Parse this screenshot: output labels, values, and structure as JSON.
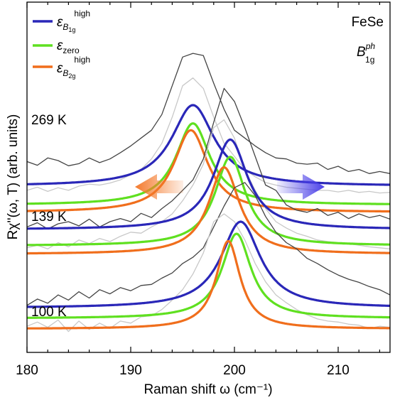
{
  "chart_data": {
    "type": "line",
    "xlabel": "Raman shift ω (cm⁻¹)",
    "ylabel": "Rχ''(ω, T) (arb. units)",
    "xlim": [
      180,
      215
    ],
    "xticks": [
      180,
      190,
      200,
      210
    ],
    "material": "FeSe",
    "mode": {
      "base": "B",
      "sup": "ph",
      "sub": "1g"
    },
    "legend": {
      "placement": "top-left",
      "entries": [
        {
          "symbol": "ε",
          "sub": "B",
          "subsub": "1g",
          "sup": "high",
          "color": "#2a27b8"
        },
        {
          "symbol": "ε",
          "sub": "zero",
          "subsub": "",
          "sup": "",
          "color": "#5fe020"
        },
        {
          "symbol": "ε",
          "sub": "B",
          "subsub": "2g",
          "sup": "high",
          "color": "#f06e1c"
        }
      ]
    },
    "arrows": [
      {
        "direction": "left",
        "color": "#f47a2c"
      },
      {
        "direction": "right",
        "color": "#4a3fe8"
      }
    ],
    "temperatures": [
      {
        "label": "269 K",
        "fits": [
          {
            "color": "#2a27b8",
            "center": 196.0,
            "gamma": 2.5,
            "amp": 1.55,
            "offset": 0.98
          },
          {
            "color": "#5fe020",
            "center": 196.0,
            "gamma": 2.0,
            "amp": 1.56,
            "offset": 0.62
          },
          {
            "color": "#f06e1c",
            "center": 195.8,
            "gamma": 2.0,
            "amp": 1.57,
            "offset": 0.48
          }
        ],
        "data": [
          {
            "color": "#444444",
            "x": [
              180,
              181,
              182,
              183,
              184,
              185,
              186,
              187,
              188,
              189,
              190,
              191,
              192,
              193,
              194,
              195,
              196,
              197,
              198,
              199,
              200,
              201,
              202,
              203,
              204,
              205,
              206,
              207,
              208,
              209,
              210,
              211,
              212,
              213,
              214,
              215
            ],
            "y": [
              1.45,
              1.38,
              1.52,
              1.47,
              1.37,
              1.41,
              1.52,
              1.43,
              1.5,
              1.62,
              1.75,
              1.9,
              2.05,
              2.35,
              2.9,
              3.45,
              3.52,
              3.48,
              2.95,
              2.45,
              2.05,
              1.9,
              1.75,
              1.62,
              1.52,
              1.5,
              1.42,
              1.4,
              1.42,
              1.3,
              1.36,
              1.26,
              1.3,
              1.22,
              1.26,
              1.22
            ]
          },
          {
            "color": "#c8c8c8",
            "x": [
              180,
              181,
              182,
              183,
              184,
              185,
              186,
              187,
              188,
              189,
              190,
              191,
              192,
              193,
              194,
              195,
              196,
              197,
              198,
              199,
              200,
              201,
              202,
              203,
              204,
              205,
              206,
              207,
              208,
              209,
              210,
              211,
              212,
              213,
              214,
              215
            ],
            "y": [
              0.9,
              0.96,
              0.88,
              0.95,
              0.9,
              0.98,
              1.02,
              1.0,
              1.04,
              1.1,
              1.2,
              1.3,
              1.5,
              1.8,
              2.3,
              2.9,
              3.05,
              2.85,
              2.3,
              1.8,
              1.55,
              1.3,
              1.16,
              1.05,
              1.0,
              0.96,
              0.94,
              0.92,
              0.9,
              0.9,
              0.87,
              0.9,
              0.86,
              0.88,
              0.85,
              0.86
            ]
          }
        ]
      },
      {
        "label": "139 K",
        "fits": [
          {
            "color": "#2a27b8",
            "center": 199.6,
            "gamma": 2.0,
            "amp": 1.72,
            "offset": 0.15
          },
          {
            "color": "#5fe020",
            "center": 199.6,
            "gamma": 1.8,
            "amp": 1.7,
            "offset": -0.16
          },
          {
            "color": "#f06e1c",
            "center": 199.0,
            "gamma": 1.8,
            "amp": 1.66,
            "offset": -0.32
          }
        ],
        "data": [
          {
            "color": "#444444",
            "x": [
              180,
              181,
              182,
              183,
              184,
              185,
              186,
              187,
              188,
              189,
              190,
              191,
              192,
              193,
              194,
              195,
              196,
              197,
              198,
              199,
              200,
              201,
              202,
              203,
              204,
              205,
              206,
              207,
              208,
              209,
              210,
              211,
              212,
              213,
              214,
              215
            ],
            "y": [
              0.2,
              0.28,
              0.16,
              0.26,
              0.3,
              0.22,
              0.35,
              0.2,
              0.3,
              0.36,
              0.3,
              0.46,
              0.38,
              0.55,
              0.7,
              0.9,
              1.1,
              1.5,
              2.2,
              2.85,
              2.6,
              2.1,
              1.55,
              1.0,
              0.9,
              0.62,
              0.52,
              0.48,
              0.55,
              0.42,
              0.48,
              0.36,
              0.45,
              0.38,
              0.42,
              0.35
            ]
          },
          {
            "color": "#c8c8c8",
            "x": [
              180,
              181,
              182,
              183,
              184,
              185,
              186,
              187,
              188,
              189,
              190,
              191,
              192,
              193,
              194,
              195,
              196,
              197,
              198,
              199,
              200,
              201,
              202,
              203,
              204,
              205,
              206,
              207,
              208,
              209,
              210,
              211,
              212,
              213,
              214,
              215
            ],
            "y": [
              -0.2,
              -0.15,
              -0.22,
              -0.1,
              -0.18,
              -0.05,
              -0.12,
              -0.02,
              -0.08,
              0.02,
              0.1,
              0.08,
              0.2,
              0.3,
              0.45,
              0.7,
              1.0,
              1.4,
              2.1,
              2.25,
              1.9,
              1.3,
              0.9,
              0.55,
              0.3,
              0.18,
              0.08,
              0.02,
              -0.05,
              -0.08,
              -0.1,
              -0.12,
              -0.15,
              -0.18,
              -0.2,
              -0.22
            ]
          }
        ]
      },
      {
        "label": "100 K",
        "fits": [
          {
            "color": "#2a27b8",
            "center": 200.6,
            "gamma": 2.3,
            "amp": 1.65,
            "offset": -1.35
          },
          {
            "color": "#5fe020",
            "center": 200.2,
            "gamma": 1.7,
            "amp": 1.62,
            "offset": -1.55
          },
          {
            "color": "#f06e1c",
            "center": 199.4,
            "gamma": 1.4,
            "amp": 1.68,
            "offset": -1.75
          }
        ],
        "data": [
          {
            "color": "#444444",
            "x": [
              180,
              181,
              182,
              183,
              184,
              185,
              186,
              187,
              188,
              189,
              190,
              191,
              192,
              193,
              194,
              195,
              196,
              197,
              198,
              199,
              200,
              201,
              202,
              203,
              204,
              205,
              206,
              207,
              208,
              209,
              210,
              211,
              212,
              213,
              214,
              215
            ],
            "y": [
              -1.3,
              -1.18,
              -1.26,
              -1.1,
              -1.2,
              -1.04,
              -1.16,
              -1.0,
              -1.08,
              -0.96,
              -1.02,
              -0.92,
              -0.9,
              -0.78,
              -0.68,
              -0.5,
              -0.38,
              -0.2,
              0.2,
              0.6,
              0.95,
              1.05,
              0.8,
              0.4,
              0.1,
              -0.1,
              -0.22,
              -0.4,
              -0.5,
              -0.62,
              -0.72,
              -0.8,
              -0.86,
              -0.94,
              -1.0,
              -1.1
            ]
          },
          {
            "color": "#c8c8c8",
            "x": [
              180,
              181,
              182,
              183,
              184,
              185,
              186,
              187,
              188,
              189,
              190,
              191,
              192,
              193,
              194,
              195,
              196,
              197,
              198,
              199,
              200,
              201,
              202,
              203,
              204,
              205,
              206,
              207,
              208,
              209,
              210,
              211,
              212,
              213,
              214,
              215
            ],
            "y": [
              -1.7,
              -1.62,
              -1.72,
              -1.58,
              -1.8,
              -1.6,
              -1.76,
              -1.64,
              -1.74,
              -1.6,
              -1.64,
              -1.52,
              -1.5,
              -1.38,
              -1.2,
              -1.0,
              -0.7,
              -0.3,
              0.3,
              0.45,
              0.3,
              -0.05,
              -0.5,
              -0.85,
              -1.1,
              -1.25,
              -1.38,
              -1.48,
              -1.56,
              -1.6,
              -1.62,
              -1.66,
              -1.68,
              -1.74,
              -1.7,
              -1.72
            ]
          }
        ]
      }
    ]
  }
}
